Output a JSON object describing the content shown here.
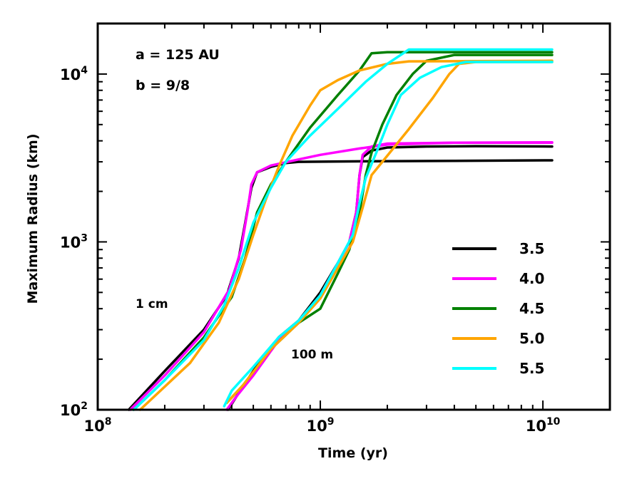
{
  "chart_data": {
    "type": "line",
    "title": "",
    "xlabel": "Time (yr)",
    "ylabel": "Maximum Radius (km)",
    "xscale": "log",
    "yscale": "log",
    "xlim": [
      100000000.0,
      20000000000.0
    ],
    "ylim": [
      100,
      20000
    ],
    "x_tick_labels": [
      {
        "value": 100000000.0,
        "base": "10",
        "exp": "8"
      },
      {
        "value": 1000000000.0,
        "base": "10",
        "exp": "9"
      },
      {
        "value": 10000000000.0,
        "base": "10",
        "exp": "10"
      }
    ],
    "y_tick_labels": [
      {
        "value": 100,
        "base": "10",
        "exp": "2"
      },
      {
        "value": 1000,
        "base": "10",
        "exp": "3"
      },
      {
        "value": 10000,
        "base": "10",
        "exp": "4"
      }
    ],
    "annotations": [
      {
        "key": "a",
        "text": "a = 125 AU"
      },
      {
        "key": "b",
        "text": "b = 9/8"
      },
      {
        "key": "cm",
        "text": "1 cm"
      },
      {
        "key": "m",
        "text": "100 m"
      }
    ],
    "legend_position": "lower-right",
    "series": [
      {
        "name": "3.5",
        "color": "#000000",
        "group": "1 cm",
        "points": [
          [
            138000000.0,
            100
          ],
          [
            200000000.0,
            170
          ],
          [
            300000000.0,
            300
          ],
          [
            380000000.0,
            480
          ],
          [
            430000000.0,
            800
          ],
          [
            460000000.0,
            1300
          ],
          [
            490000000.0,
            2100
          ],
          [
            520000000.0,
            2600
          ],
          [
            600000000.0,
            2800
          ],
          [
            700000000.0,
            2950
          ],
          [
            800000000.0,
            3000
          ],
          [
            1500000000.0,
            3020
          ],
          [
            4000000000.0,
            3040
          ],
          [
            11000000000.0,
            3060
          ]
        ]
      },
      {
        "name": "4.0",
        "color": "#ff00ff",
        "group": "1 cm",
        "points": [
          [
            140000000.0,
            100
          ],
          [
            200000000.0,
            160
          ],
          [
            300000000.0,
            290
          ],
          [
            390000000.0,
            520
          ],
          [
            440000000.0,
            900
          ],
          [
            470000000.0,
            1500
          ],
          [
            490000000.0,
            2200
          ],
          [
            520000000.0,
            2600
          ],
          [
            600000000.0,
            2850
          ],
          [
            800000000.0,
            3100
          ],
          [
            1000000000.0,
            3300
          ],
          [
            1500000000.0,
            3600
          ],
          [
            2000000000.0,
            3800
          ],
          [
            4000000000.0,
            3900
          ],
          [
            11000000000.0,
            3920
          ]
        ]
      },
      {
        "name": "4.5",
        "color": "#008000",
        "group": "1 cm",
        "points": [
          [
            145000000.0,
            100
          ],
          [
            200000000.0,
            150
          ],
          [
            300000000.0,
            270
          ],
          [
            400000000.0,
            470
          ],
          [
            460000000.0,
            800
          ],
          [
            520000000.0,
            1500
          ],
          [
            600000000.0,
            2200
          ],
          [
            700000000.0,
            3000
          ],
          [
            900000000.0,
            4800
          ],
          [
            1200000000.0,
            7500
          ],
          [
            1500000000.0,
            10500
          ],
          [
            1700000000.0,
            13300
          ],
          [
            2000000000.0,
            13500
          ],
          [
            11000000000.0,
            13500
          ]
        ]
      },
      {
        "name": "5.0",
        "color": "#ffa500",
        "group": "1 cm",
        "points": [
          [
            155000000.0,
            100
          ],
          [
            260000000.0,
            190
          ],
          [
            350000000.0,
            330
          ],
          [
            430000000.0,
            600
          ],
          [
            500000000.0,
            1100
          ],
          [
            570000000.0,
            1800
          ],
          [
            650000000.0,
            2800
          ],
          [
            750000000.0,
            4300
          ],
          [
            900000000.0,
            6500
          ],
          [
            1000000000.0,
            8000
          ],
          [
            1200000000.0,
            9200
          ],
          [
            1500000000.0,
            10500
          ],
          [
            2000000000.0,
            11500
          ],
          [
            2500000000.0,
            11900
          ],
          [
            11000000000.0,
            12000
          ]
        ]
      },
      {
        "name": "5.5",
        "color": "#00ffff",
        "group": "1 cm",
        "points": [
          [
            145000000.0,
            100
          ],
          [
            200000000.0,
            150
          ],
          [
            300000000.0,
            260
          ],
          [
            370000000.0,
            420
          ],
          [
            430000000.0,
            700
          ],
          [
            500000000.0,
            1300
          ],
          [
            600000000.0,
            2100
          ],
          [
            700000000.0,
            3000
          ],
          [
            900000000.0,
            4300
          ],
          [
            1200000000.0,
            6200
          ],
          [
            1600000000.0,
            9000
          ],
          [
            2000000000.0,
            11500
          ],
          [
            2500000000.0,
            14000
          ],
          [
            11000000000.0,
            14000
          ]
        ]
      },
      {
        "name": "3.5",
        "color": "#000000",
        "group": "100 m",
        "points": [
          [
            385000000.0,
            100
          ],
          [
            420000000.0,
            120
          ],
          [
            500000000.0,
            170
          ],
          [
            650000000.0,
            270
          ],
          [
            800000000.0,
            340
          ],
          [
            1000000000.0,
            500
          ],
          [
            1200000000.0,
            750
          ],
          [
            1350000000.0,
            1000
          ],
          [
            1450000000.0,
            1500
          ],
          [
            1500000000.0,
            2500
          ],
          [
            1550000000.0,
            3200
          ],
          [
            1700000000.0,
            3500
          ],
          [
            2000000000.0,
            3650
          ],
          [
            3000000000.0,
            3700
          ],
          [
            5000000000.0,
            3720
          ],
          [
            11000000000.0,
            3700
          ]
        ]
      },
      {
        "name": "4.0",
        "color": "#ff00ff",
        "group": "100 m",
        "points": [
          [
            380000000.0,
            100
          ],
          [
            420000000.0,
            120
          ],
          [
            500000000.0,
            160
          ],
          [
            650000000.0,
            260
          ],
          [
            800000000.0,
            330
          ],
          [
            1000000000.0,
            480
          ],
          [
            1200000000.0,
            750
          ],
          [
            1350000000.0,
            1000
          ],
          [
            1450000000.0,
            1500
          ],
          [
            1500000000.0,
            2500
          ],
          [
            1550000000.0,
            3300
          ],
          [
            1700000000.0,
            3700
          ],
          [
            2000000000.0,
            3850
          ],
          [
            4000000000.0,
            3900
          ],
          [
            11000000000.0,
            3900
          ]
        ]
      },
      {
        "name": "4.5",
        "color": "#008000",
        "group": "100 m",
        "points": [
          [
            380000000.0,
            110
          ],
          [
            450000000.0,
            140
          ],
          [
            600000000.0,
            230
          ],
          [
            800000000.0,
            330
          ],
          [
            1000000000.0,
            400
          ],
          [
            1200000000.0,
            650
          ],
          [
            1350000000.0,
            900
          ],
          [
            1500000000.0,
            1500
          ],
          [
            1600000000.0,
            2500
          ],
          [
            1700000000.0,
            3400
          ],
          [
            1900000000.0,
            5000
          ],
          [
            2200000000.0,
            7500
          ],
          [
            2600000000.0,
            10000
          ],
          [
            3000000000.0,
            12000
          ],
          [
            4000000000.0,
            13000
          ],
          [
            11000000000.0,
            13000
          ]
        ]
      },
      {
        "name": "5.0",
        "color": "#ffa500",
        "group": "100 m",
        "points": [
          [
            380000000.0,
            110
          ],
          [
            450000000.0,
            140
          ],
          [
            600000000.0,
            230
          ],
          [
            800000000.0,
            330
          ],
          [
            1000000000.0,
            460
          ],
          [
            1200000000.0,
            700
          ],
          [
            1400000000.0,
            1000
          ],
          [
            1550000000.0,
            1600
          ],
          [
            1700000000.0,
            2500
          ],
          [
            1900000000.0,
            3000
          ],
          [
            2500000000.0,
            4700
          ],
          [
            3200000000.0,
            7200
          ],
          [
            3800000000.0,
            10000
          ],
          [
            4200000000.0,
            11500
          ],
          [
            5000000000.0,
            11800
          ],
          [
            11000000000.0,
            11800
          ]
        ]
      },
      {
        "name": "5.5",
        "color": "#00ffff",
        "group": "100 m",
        "points": [
          [
            370000000.0,
            105
          ],
          [
            400000000.0,
            130
          ],
          [
            500000000.0,
            180
          ],
          [
            650000000.0,
            270
          ],
          [
            800000000.0,
            340
          ],
          [
            1000000000.0,
            480
          ],
          [
            1200000000.0,
            750
          ],
          [
            1400000000.0,
            1100
          ],
          [
            1500000000.0,
            1700
          ],
          [
            1600000000.0,
            2400
          ],
          [
            1800000000.0,
            3500
          ],
          [
            2000000000.0,
            5000
          ],
          [
            2300000000.0,
            7500
          ],
          [
            2800000000.0,
            9500
          ],
          [
            3500000000.0,
            11000
          ],
          [
            4500000000.0,
            11800
          ],
          [
            11000000000.0,
            11800
          ]
        ]
      }
    ],
    "legend": [
      {
        "label": "3.5",
        "color": "#000000"
      },
      {
        "label": "4.0",
        "color": "#ff00ff"
      },
      {
        "label": "4.5",
        "color": "#008000"
      },
      {
        "label": "5.0",
        "color": "#ffa500"
      },
      {
        "label": "5.5",
        "color": "#00ffff"
      }
    ]
  }
}
